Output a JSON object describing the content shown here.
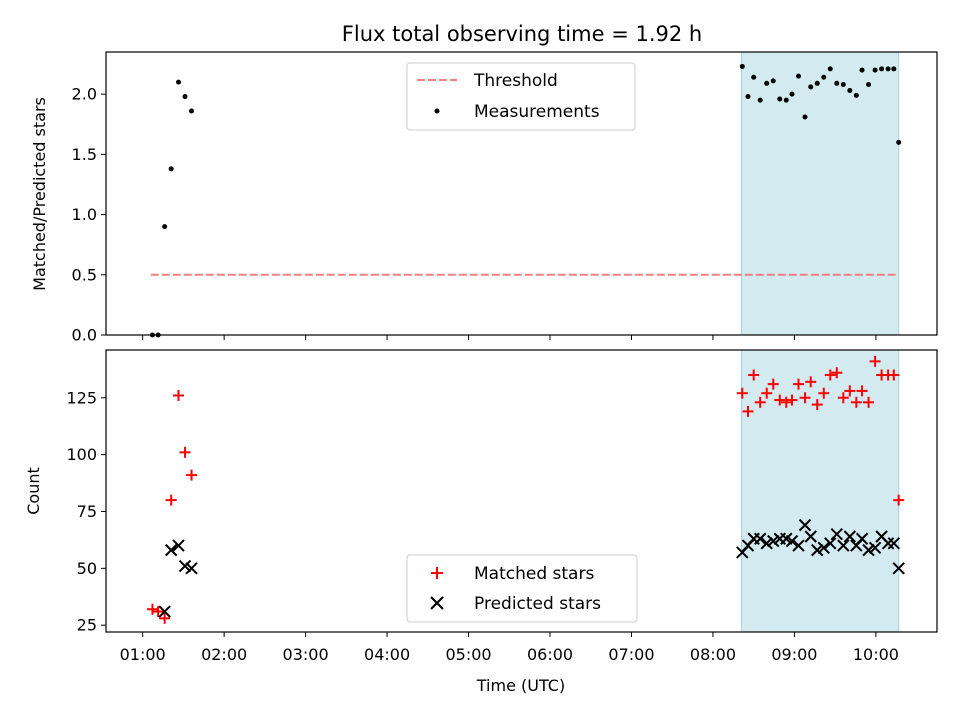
{
  "chart_data": [
    {
      "type": "scatter",
      "title": "Flux total observing time = 1.92 h",
      "ylabel": "Matched/Predicted stars",
      "xlabel": "",
      "x_unit": "hours UTC",
      "xlim": [
        0.55,
        10.75
      ],
      "ylim": [
        0.0,
        2.35
      ],
      "y_ticks": [
        0.0,
        0.5,
        1.0,
        1.5,
        2.0
      ],
      "y_tick_labels": [
        "0.0",
        "0.5",
        "1.0",
        "1.5",
        "2.0"
      ],
      "shaded_span": {
        "x_start": 8.35,
        "x_end": 10.28,
        "color": "#d3eaf0"
      },
      "threshold": {
        "name": "Threshold",
        "value": 0.5,
        "x_start": 1.1,
        "x_end": 10.28,
        "color": "#f08080"
      },
      "legend_position": "top-center",
      "series": [
        {
          "name": "Measurements",
          "color": "#000000",
          "x": [
            1.12,
            1.19,
            1.27,
            1.35,
            1.44,
            1.52,
            1.6,
            8.36,
            8.43,
            8.5,
            8.58,
            8.66,
            8.74,
            8.82,
            8.9,
            8.97,
            9.05,
            9.13,
            9.2,
            9.28,
            9.36,
            9.44,
            9.52,
            9.6,
            9.68,
            9.76,
            9.83,
            9.91,
            9.99,
            10.07,
            10.15,
            10.22,
            10.28
          ],
          "y": [
            0.0,
            0.0,
            0.9,
            1.38,
            2.1,
            1.98,
            1.86,
            2.23,
            1.98,
            2.14,
            1.95,
            2.09,
            2.11,
            1.96,
            1.95,
            2.0,
            2.15,
            1.81,
            2.06,
            2.09,
            2.14,
            2.21,
            2.09,
            2.08,
            2.03,
            1.99,
            2.2,
            2.08,
            2.2,
            2.21,
            2.21,
            2.21,
            1.6
          ]
        }
      ]
    },
    {
      "type": "scatter",
      "title": "",
      "ylabel": "Count",
      "xlabel": "Time (UTC)",
      "x_unit": "hours UTC",
      "xlim": [
        0.55,
        10.75
      ],
      "ylim": [
        22,
        146
      ],
      "x_ticks": [
        1,
        2,
        3,
        4,
        5,
        6,
        7,
        8,
        9,
        10
      ],
      "x_tick_labels": [
        "01:00",
        "02:00",
        "03:00",
        "04:00",
        "05:00",
        "06:00",
        "07:00",
        "08:00",
        "09:00",
        "10:00"
      ],
      "y_ticks": [
        25,
        50,
        75,
        100,
        125
      ],
      "y_tick_labels": [
        "25",
        "50",
        "75",
        "100",
        "125"
      ],
      "shaded_span": {
        "x_start": 8.35,
        "x_end": 10.28,
        "color": "#d3eaf0"
      },
      "legend_position": "bottom-center",
      "series": [
        {
          "name": "Matched stars",
          "marker": "plus",
          "color": "#ff0000",
          "x": [
            1.12,
            1.19,
            1.27,
            1.35,
            1.44,
            1.52,
            1.6,
            8.36,
            8.43,
            8.5,
            8.58,
            8.66,
            8.74,
            8.82,
            8.9,
            8.97,
            9.05,
            9.13,
            9.2,
            9.28,
            9.36,
            9.44,
            9.52,
            9.6,
            9.68,
            9.76,
            9.83,
            9.91,
            9.99,
            10.07,
            10.15,
            10.22,
            10.28
          ],
          "y": [
            32,
            31,
            28,
            80,
            126,
            101,
            91,
            127,
            119,
            135,
            123,
            127,
            131,
            124,
            123,
            124,
            131,
            125,
            132,
            122,
            127,
            135,
            136,
            125,
            128,
            123,
            128,
            123,
            141,
            135,
            135,
            135,
            80
          ]
        },
        {
          "name": "Predicted stars",
          "marker": "x",
          "color": "#000000",
          "x": [
            1.27,
            1.35,
            1.44,
            1.52,
            1.6,
            8.36,
            8.43,
            8.5,
            8.58,
            8.66,
            8.74,
            8.82,
            8.9,
            8.97,
            9.05,
            9.13,
            9.2,
            9.28,
            9.36,
            9.44,
            9.52,
            9.6,
            9.68,
            9.76,
            9.83,
            9.91,
            9.99,
            10.07,
            10.15,
            10.22,
            10.28
          ],
          "y": [
            31,
            58,
            60,
            51,
            50,
            57,
            60,
            63,
            63,
            61,
            62,
            63,
            63,
            62,
            60,
            69,
            64,
            58,
            59,
            61,
            65,
            60,
            64,
            60,
            63,
            58,
            59,
            64,
            61,
            61,
            50
          ]
        }
      ]
    }
  ]
}
